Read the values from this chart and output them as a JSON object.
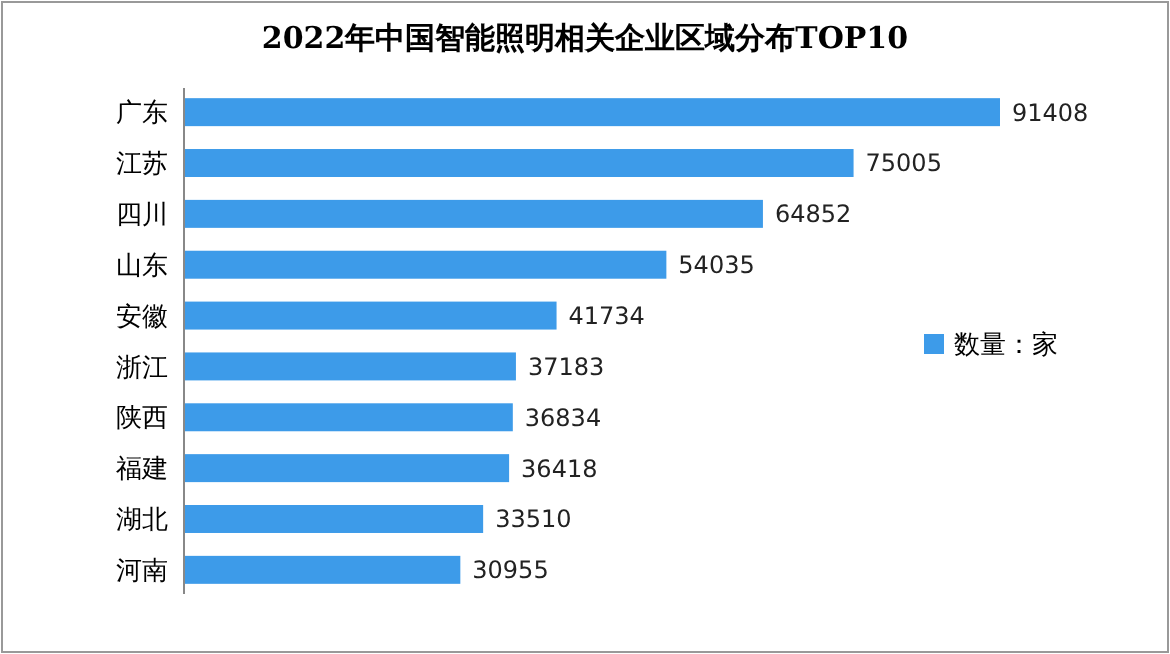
{
  "chart_data": {
    "type": "bar",
    "orientation": "horizontal",
    "title": "2022年中国智能照明相关企业区域分布TOP10",
    "categories": [
      "广东",
      "江苏",
      "四川",
      "山东",
      "安徽",
      "浙江",
      "陕西",
      "福建",
      "湖北",
      "河南"
    ],
    "series": [
      {
        "name": "数量：家",
        "color": "#3d9be9",
        "values": [
          91408,
          75005,
          64852,
          54035,
          41734,
          37183,
          36834,
          36418,
          33510,
          30955
        ]
      }
    ],
    "data_labels": true,
    "legend": "right",
    "grid": false
  }
}
